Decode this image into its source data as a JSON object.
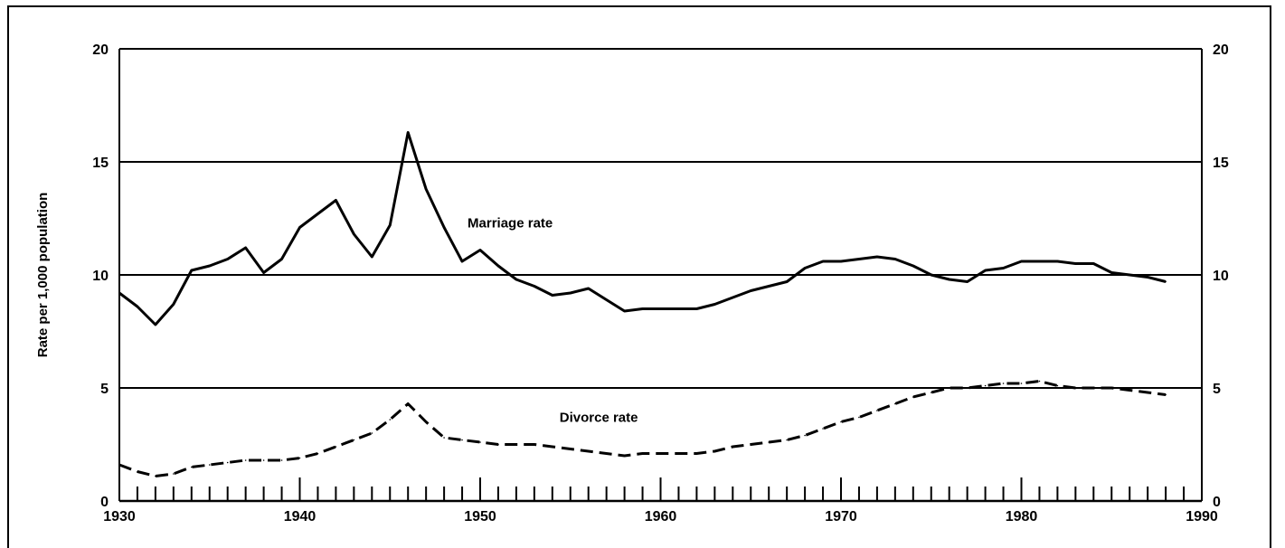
{
  "chart_data": {
    "type": "line",
    "ylabel": "Rate per 1,000 population",
    "xlabel": "",
    "xlim": [
      1930,
      1990
    ],
    "ylim": [
      0,
      20
    ],
    "x_ticks": [
      1930,
      1940,
      1950,
      1960,
      1970,
      1980,
      1990
    ],
    "y_ticks": [
      0,
      5,
      10,
      15,
      20
    ],
    "grid": "horizontal",
    "series": [
      {
        "name": "Marriage rate",
        "style": "solid",
        "x": [
          1930,
          1931,
          1932,
          1933,
          1934,
          1935,
          1936,
          1937,
          1938,
          1939,
          1940,
          1941,
          1942,
          1943,
          1944,
          1945,
          1946,
          1947,
          1948,
          1949,
          1950,
          1951,
          1952,
          1953,
          1954,
          1955,
          1956,
          1957,
          1958,
          1959,
          1960,
          1961,
          1962,
          1963,
          1964,
          1965,
          1966,
          1967,
          1968,
          1969,
          1970,
          1971,
          1972,
          1973,
          1974,
          1975,
          1976,
          1977,
          1978,
          1979,
          1980,
          1981,
          1982,
          1983,
          1984,
          1985,
          1986,
          1987,
          1988
        ],
        "values": [
          9.2,
          8.6,
          7.8,
          8.7,
          10.2,
          10.4,
          10.7,
          11.2,
          10.1,
          10.7,
          12.1,
          12.7,
          13.3,
          11.8,
          10.8,
          12.2,
          16.3,
          13.8,
          12.1,
          10.6,
          11.1,
          10.4,
          9.8,
          9.5,
          9.1,
          9.2,
          9.4,
          8.9,
          8.4,
          8.5,
          8.5,
          8.5,
          8.5,
          8.7,
          9.0,
          9.3,
          9.5,
          9.7,
          10.3,
          10.6,
          10.6,
          10.7,
          10.8,
          10.7,
          10.4,
          10.0,
          9.8,
          9.7,
          10.2,
          10.3,
          10.6,
          10.6,
          10.6,
          10.5,
          10.5,
          10.1,
          10.0,
          9.9,
          9.7
        ]
      },
      {
        "name": "Divorce rate",
        "style": "dashed",
        "x": [
          1930,
          1931,
          1932,
          1933,
          1934,
          1935,
          1936,
          1937,
          1938,
          1939,
          1940,
          1941,
          1942,
          1943,
          1944,
          1945,
          1946,
          1947,
          1948,
          1949,
          1950,
          1951,
          1952,
          1953,
          1954,
          1955,
          1956,
          1957,
          1958,
          1959,
          1960,
          1961,
          1962,
          1963,
          1964,
          1965,
          1966,
          1967,
          1968,
          1969,
          1970,
          1971,
          1972,
          1973,
          1974,
          1975,
          1976,
          1977,
          1978,
          1979,
          1980,
          1981,
          1982,
          1983,
          1984,
          1985,
          1986,
          1987,
          1988
        ],
        "values": [
          1.6,
          1.3,
          1.1,
          1.2,
          1.5,
          1.6,
          1.7,
          1.8,
          1.8,
          1.8,
          1.9,
          2.1,
          2.4,
          2.7,
          3.0,
          3.6,
          4.3,
          3.5,
          2.8,
          2.7,
          2.6,
          2.5,
          2.5,
          2.5,
          2.4,
          2.3,
          2.2,
          2.1,
          2.0,
          2.1,
          2.1,
          2.1,
          2.1,
          2.2,
          2.4,
          2.5,
          2.6,
          2.7,
          2.9,
          3.2,
          3.5,
          3.7,
          4.0,
          4.3,
          4.6,
          4.8,
          5.0,
          5.0,
          5.1,
          5.2,
          5.2,
          5.3,
          5.1,
          5.0,
          5.0,
          5.0,
          4.9,
          4.8,
          4.7
        ]
      }
    ],
    "annotations": [
      {
        "text": "Marriage rate",
        "x": 1949.3,
        "y": 12.1
      },
      {
        "text": "Divorce rate",
        "x": 1954.4,
        "y": 3.5
      }
    ]
  }
}
